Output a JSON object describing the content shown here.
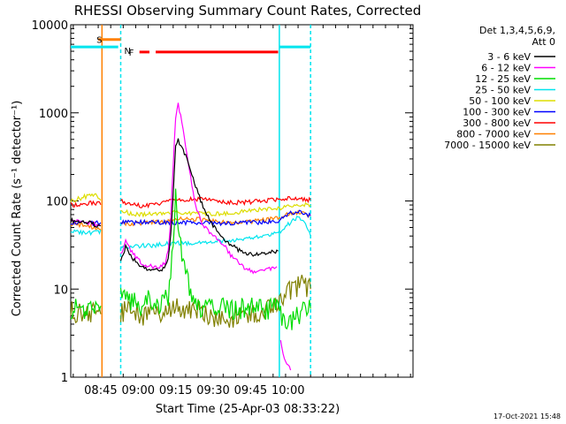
{
  "chart_data": {
    "type": "line",
    "title": "RHESSI Observing Summary Count Rates, Corrected",
    "xlabel": "Start Time (25-Apr-03 08:33:22)",
    "ylabel": "Corrected Count Rate (s⁻¹ detector⁻¹)",
    "yscale": "log",
    "ylim": [
      1,
      10000
    ],
    "xlim_minutes_after_0833": [
      0,
      137
    ],
    "x_ticks": [
      "08:45",
      "09:00",
      "09:15",
      "09:30",
      "09:45",
      "10:00"
    ],
    "x_tick_minutes": [
      12,
      27,
      42,
      57,
      72,
      87
    ],
    "y_ticks": [
      "1",
      "10",
      "100",
      "1000",
      "10000"
    ],
    "y_tick_values": [
      1,
      10,
      100,
      1000,
      10000
    ],
    "legend_header": [
      "Det 1,3,4,5,6,9,",
      "Att 0"
    ],
    "timestamp": "17-Oct-2021 15:48",
    "flags": [
      {
        "label": "S",
        "color": "#ff8000",
        "start": 11,
        "end": 20,
        "level": 6800
      },
      {
        "label": "N",
        "color": "#00e5ee",
        "start": 0,
        "end": 19,
        "level": 5600
      },
      {
        "label": "N",
        "color": "#00e5ee",
        "start": 83.5,
        "end": 96,
        "level": 5600
      },
      {
        "label": "F",
        "color": "#ff0000",
        "start": 27.5,
        "end": 31.5,
        "level": 4900
      },
      {
        "label": "",
        "color": "#ff0000",
        "start": 34,
        "end": 83,
        "level": 4900
      }
    ],
    "vertical_markers": [
      {
        "x": 12.5,
        "color": "#ff8000",
        "style": "solid"
      },
      {
        "x": 20,
        "color": "#00e5ee",
        "style": "dashed"
      },
      {
        "x": 83.5,
        "color": "#00e5ee",
        "style": "solid"
      },
      {
        "x": 96,
        "color": "#00e5ee",
        "style": "dashed"
      }
    ],
    "series": [
      {
        "name": "3 - 6 keV",
        "color": "#000000",
        "x": [
          0,
          5,
          9,
          11,
          12.5,
          20,
          22,
          25,
          28,
          31,
          34,
          36,
          38,
          39,
          40,
          41,
          42,
          43,
          44,
          46,
          48,
          50,
          52,
          55,
          58,
          61,
          64,
          67,
          70,
          73,
          76,
          79,
          83
        ],
        "y": [
          60,
          58,
          55,
          52,
          50,
          20,
          30,
          22,
          18,
          17,
          17,
          16,
          18,
          22,
          40,
          120,
          400,
          500,
          420,
          320,
          230,
          150,
          100,
          65,
          48,
          38,
          32,
          28,
          26,
          25,
          25,
          26,
          27
        ]
      },
      {
        "name": "6 - 12 keV",
        "color": "#ff00ff",
        "x": [
          0,
          5,
          9,
          11,
          12.5,
          20,
          22,
          25,
          28,
          31,
          34,
          36,
          38,
          39,
          40,
          41,
          42,
          43,
          44,
          46,
          48,
          50,
          52,
          55,
          58,
          60,
          62,
          64,
          67,
          70,
          73,
          76,
          79,
          83,
          84,
          86,
          88
        ],
        "y": [
          60,
          58,
          55,
          52,
          50,
          24,
          35,
          25,
          20,
          18,
          18,
          18,
          20,
          28,
          60,
          250,
          900,
          1300,
          900,
          430,
          180,
          90,
          60,
          45,
          38,
          35,
          30,
          24,
          20,
          17,
          16,
          16,
          17,
          18,
          2.5,
          1.5,
          1.2
        ]
      },
      {
        "name": "12 - 25 keV",
        "color": "#00dd00",
        "x": [
          0,
          5,
          9,
          11,
          12.5,
          20,
          22,
          25,
          28,
          31,
          34,
          37,
          39,
          40,
          41,
          42,
          43,
          44,
          46,
          49,
          52,
          55,
          58,
          61,
          64,
          67,
          70,
          73,
          76,
          79,
          83,
          85,
          88,
          91,
          93,
          96
        ],
        "y": [
          6,
          6,
          6,
          6,
          6,
          8,
          9,
          7,
          6,
          8,
          6,
          7,
          8,
          12,
          40,
          110,
          60,
          30,
          14,
          8,
          6,
          6,
          6,
          6,
          6,
          6,
          6,
          6,
          6,
          6,
          6,
          4,
          4,
          5,
          6,
          6
        ]
      },
      {
        "name": "25 - 50 keV",
        "color": "#00e5ee",
        "x": [
          0,
          5,
          9,
          11,
          12.5,
          20,
          24,
          28,
          32,
          36,
          40,
          44,
          48,
          52,
          56,
          60,
          64,
          68,
          72,
          76,
          80,
          83,
          85,
          87,
          89,
          91,
          93,
          95,
          96
        ],
        "y": [
          45,
          44,
          43,
          45,
          45,
          30,
          30,
          31,
          31,
          32,
          33,
          33,
          33,
          33,
          34,
          35,
          36,
          37,
          38,
          40,
          42,
          44,
          46,
          54,
          62,
          65,
          58,
          48,
          40
        ]
      },
      {
        "name": "50 - 100 keV",
        "color": "#dddd00",
        "x": [
          0,
          5,
          9,
          11,
          12.5,
          20,
          24,
          28,
          32,
          36,
          40,
          44,
          48,
          52,
          56,
          60,
          64,
          68,
          72,
          76,
          80,
          83,
          85,
          88,
          91,
          93,
          96
        ],
        "y": [
          100,
          110,
          120,
          112,
          105,
          78,
          72,
          70,
          71,
          72,
          74,
          74,
          73,
          72,
          71,
          72,
          73,
          75,
          78,
          80,
          80,
          82,
          85,
          88,
          92,
          92,
          90
        ]
      },
      {
        "name": "100 - 300 keV",
        "color": "#0000ff",
        "x": [
          0,
          5,
          9,
          11,
          12.5,
          20,
          24,
          28,
          32,
          36,
          40,
          44,
          48,
          52,
          56,
          60,
          64,
          68,
          72,
          76,
          80,
          83,
          85,
          88,
          91,
          93,
          96
        ],
        "y": [
          57,
          56,
          56,
          57,
          57,
          58,
          57,
          57,
          57,
          57,
          57,
          57,
          57,
          56,
          56,
          56,
          56,
          56,
          57,
          57,
          58,
          60,
          65,
          72,
          76,
          73,
          68
        ]
      },
      {
        "name": "300 - 800 keV",
        "color": "#ff0000",
        "x": [
          0,
          5,
          9,
          11,
          12.5,
          20,
          24,
          28,
          32,
          36,
          40,
          44,
          48,
          52,
          56,
          60,
          64,
          68,
          72,
          76,
          80,
          83,
          85,
          88,
          91,
          93,
          96
        ],
        "y": [
          90,
          92,
          95,
          93,
          92,
          100,
          92,
          88,
          90,
          95,
          100,
          103,
          104,
          104,
          102,
          98,
          96,
          96,
          98,
          100,
          102,
          103,
          106,
          108,
          106,
          104,
          102
        ]
      },
      {
        "name": "800 - 7000 keV",
        "color": "#ff8000",
        "x": [
          0,
          5,
          9,
          11,
          12.5,
          20,
          24,
          28,
          32,
          36,
          40,
          44,
          48,
          52,
          56,
          60,
          64,
          68,
          72,
          76,
          80,
          83,
          85,
          88,
          91,
          93,
          96
        ],
        "y": [
          55,
          53,
          50,
          50,
          50,
          55,
          55,
          56,
          57,
          58,
          60,
          62,
          62,
          62,
          60,
          58,
          57,
          57,
          58,
          60,
          62,
          64,
          67,
          72,
          75,
          72,
          68
        ]
      },
      {
        "name": "7000 - 15000 keV",
        "color": "#808000",
        "x": [
          0,
          5,
          9,
          11,
          12.5,
          20,
          23,
          26,
          29,
          32,
          35,
          38,
          41,
          44,
          47,
          50,
          53,
          56,
          59,
          62,
          65,
          68,
          71,
          74,
          77,
          80,
          83,
          85,
          88,
          91,
          93,
          96
        ],
        "y": [
          5.5,
          5.5,
          5.5,
          5.5,
          5.5,
          5.5,
          6,
          5.5,
          5,
          5,
          5.5,
          5.5,
          6,
          6,
          6.2,
          6,
          5.5,
          4.5,
          4.3,
          4.3,
          4.5,
          5,
          5.2,
          5.2,
          5.5,
          6,
          6.5,
          8,
          9.5,
          11,
          11,
          10
        ]
      }
    ]
  }
}
